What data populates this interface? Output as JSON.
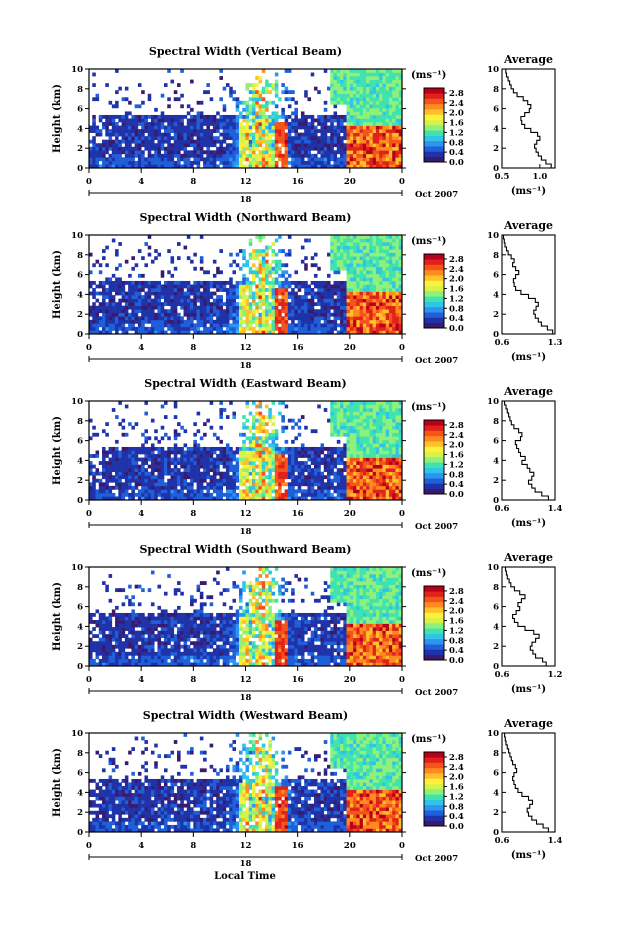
{
  "footer": {
    "xlabel": "Local Time"
  },
  "colorbar": {
    "unit_label": "(ms⁻¹)",
    "ticks": [
      "0.0",
      "0.4",
      "0.8",
      "1.2",
      "1.6",
      "2.0",
      "2.4",
      "2.8"
    ],
    "colors": [
      "#3a1a6e",
      "#2032a8",
      "#1f5fd9",
      "#2c95f0",
      "#31c4e6",
      "#3ee3b0",
      "#8ff07a",
      "#d8f24a",
      "#fff03a",
      "#ffc12a",
      "#ff8a20",
      "#f4541a",
      "#e0221a",
      "#b8001a"
    ]
  },
  "chart_data": [
    {
      "type": "heatmap",
      "title": "Spectral Width (Vertical Beam)",
      "ylabel": "Height (km)",
      "ylim": [
        0,
        10
      ],
      "yticks": [
        "0",
        "2",
        "4",
        "6",
        "8",
        "10"
      ],
      "xlim": [
        0,
        24
      ],
      "xticks": [
        "0",
        "4",
        "8",
        "12",
        "16",
        "20",
        "0"
      ],
      "date_marker": "18",
      "date_label": "Oct 2007",
      "profile": {
        "title": "Average",
        "xlabel": "(ms⁻¹)",
        "xlim": [
          0.5,
          1.2
        ],
        "xticks": [
          "0.5",
          "1.0"
        ],
        "yticks": [
          "0",
          "2",
          "4",
          "6",
          "8",
          "10"
        ],
        "heights": [
          0.2,
          0.6,
          1.0,
          1.4,
          1.8,
          2.2,
          2.6,
          3.0,
          3.4,
          3.8,
          4.2,
          4.6,
          5.0,
          5.4,
          5.8,
          6.2,
          6.6,
          7.0,
          7.4,
          7.8,
          8.2,
          8.6,
          9.0,
          9.4,
          9.8
        ],
        "values": [
          1.15,
          1.08,
          1.02,
          0.98,
          0.95,
          0.93,
          0.96,
          1.0,
          0.97,
          0.88,
          0.8,
          0.76,
          0.75,
          0.8,
          0.86,
          0.88,
          0.84,
          0.78,
          0.7,
          0.65,
          0.62,
          0.6,
          0.58,
          0.56,
          0.55
        ]
      }
    },
    {
      "type": "heatmap",
      "title": "Spectral Width (Northward Beam)",
      "ylabel": "Height (km)",
      "ylim": [
        0,
        10
      ],
      "yticks": [
        "0",
        "2",
        "4",
        "6",
        "8",
        "10"
      ],
      "xlim": [
        0,
        24
      ],
      "xticks": [
        "0",
        "4",
        "8",
        "12",
        "16",
        "20",
        "0"
      ],
      "date_marker": "18",
      "date_label": "Oct 2007",
      "profile": {
        "title": "Average",
        "xlabel": "(ms⁻¹)",
        "xlim": [
          0.6,
          1.3
        ],
        "xticks": [
          "0.6",
          "1.3"
        ],
        "yticks": [
          "0",
          "2",
          "4",
          "6",
          "8",
          "10"
        ],
        "heights": [
          0.2,
          0.6,
          1.0,
          1.4,
          1.8,
          2.2,
          2.6,
          3.0,
          3.4,
          3.8,
          4.2,
          4.6,
          5.0,
          5.4,
          5.8,
          6.2,
          6.6,
          7.0,
          7.4,
          7.8,
          8.2,
          8.6,
          9.0,
          9.4,
          9.8
        ],
        "values": [
          1.27,
          1.2,
          1.12,
          1.08,
          1.04,
          1.02,
          1.05,
          1.08,
          1.04,
          0.95,
          0.85,
          0.78,
          0.76,
          0.75,
          0.78,
          0.82,
          0.78,
          0.74,
          0.76,
          0.72,
          0.68,
          0.66,
          0.64,
          0.63,
          0.62
        ]
      }
    },
    {
      "type": "heatmap",
      "title": "Spectral Width (Eastward Beam)",
      "ylabel": "Height (km)",
      "ylim": [
        0,
        10
      ],
      "yticks": [
        "0",
        "2",
        "4",
        "6",
        "8",
        "10"
      ],
      "xlim": [
        0,
        24
      ],
      "xticks": [
        "0",
        "4",
        "8",
        "12",
        "16",
        "20",
        "0"
      ],
      "date_marker": "18",
      "date_label": "Oct 2007",
      "profile": {
        "title": "Average",
        "xlabel": "(ms⁻¹)",
        "xlim": [
          0.6,
          1.4
        ],
        "xticks": [
          "0.6",
          "1.4"
        ],
        "yticks": [
          "0",
          "2",
          "4",
          "6",
          "8",
          "10"
        ],
        "heights": [
          0.2,
          0.6,
          1.0,
          1.4,
          1.8,
          2.2,
          2.6,
          3.0,
          3.4,
          3.8,
          4.2,
          4.6,
          5.0,
          5.4,
          5.8,
          6.2,
          6.6,
          7.0,
          7.4,
          7.8,
          8.2,
          8.6,
          9.0,
          9.4,
          9.8
        ],
        "values": [
          1.3,
          1.2,
          1.1,
          1.05,
          1.0,
          1.05,
          1.08,
          1.02,
          0.98,
          0.9,
          0.95,
          0.88,
          0.85,
          0.82,
          0.8,
          0.88,
          0.9,
          0.85,
          0.78,
          0.74,
          0.72,
          0.7,
          0.68,
          0.66,
          0.64
        ]
      }
    },
    {
      "type": "heatmap",
      "title": "Spectral Width (Southward Beam)",
      "ylabel": "Height (km)",
      "ylim": [
        0,
        10
      ],
      "yticks": [
        "0",
        "2",
        "4",
        "6",
        "8",
        "10"
      ],
      "xlim": [
        0,
        24
      ],
      "xticks": [
        "0",
        "4",
        "8",
        "12",
        "16",
        "20",
        "0"
      ],
      "date_marker": "18",
      "date_label": "Oct 2007",
      "profile": {
        "title": "Average",
        "xlabel": "(ms⁻¹)",
        "xlim": [
          0.6,
          1.2
        ],
        "xticks": [
          "0.6",
          "1.2"
        ],
        "yticks": [
          "0",
          "2",
          "4",
          "6",
          "8",
          "10"
        ],
        "heights": [
          0.2,
          0.6,
          1.0,
          1.4,
          1.8,
          2.2,
          2.6,
          3.0,
          3.4,
          3.8,
          4.2,
          4.6,
          5.0,
          5.4,
          5.8,
          6.2,
          6.6,
          7.0,
          7.4,
          7.8,
          8.2,
          8.6,
          9.0,
          9.4,
          9.8
        ],
        "values": [
          1.1,
          1.06,
          0.98,
          0.95,
          0.92,
          0.94,
          0.98,
          1.02,
          0.96,
          0.86,
          0.78,
          0.74,
          0.72,
          0.76,
          0.8,
          0.78,
          0.82,
          0.86,
          0.8,
          0.74,
          0.7,
          0.68,
          0.66,
          0.65,
          0.64
        ]
      }
    },
    {
      "type": "heatmap",
      "title": "Spectral Width (Westward Beam)",
      "ylabel": "Height (km)",
      "ylim": [
        0,
        10
      ],
      "yticks": [
        "0",
        "2",
        "4",
        "6",
        "8",
        "10"
      ],
      "xlim": [
        0,
        24
      ],
      "xticks": [
        "0",
        "4",
        "8",
        "12",
        "16",
        "20",
        "0"
      ],
      "date_marker": "18",
      "date_label": "Oct 2007",
      "profile": {
        "title": "Average",
        "xlabel": "(ms⁻¹)",
        "xlim": [
          0.6,
          1.4
        ],
        "xticks": [
          "0.6",
          "1.4"
        ],
        "yticks": [
          "0",
          "2",
          "4",
          "6",
          "8",
          "10"
        ],
        "heights": [
          0.2,
          0.6,
          1.0,
          1.4,
          1.8,
          2.2,
          2.6,
          3.0,
          3.4,
          3.8,
          4.2,
          4.6,
          5.0,
          5.4,
          5.8,
          6.2,
          6.6,
          7.0,
          7.4,
          7.8,
          8.2,
          8.6,
          9.0,
          9.4,
          9.8
        ],
        "values": [
          1.3,
          1.22,
          1.12,
          1.05,
          1.0,
          0.98,
          1.02,
          1.06,
          1.0,
          0.9,
          0.84,
          0.8,
          0.78,
          0.76,
          0.78,
          0.82,
          0.8,
          0.76,
          0.74,
          0.72,
          0.7,
          0.68,
          0.66,
          0.65,
          0.64
        ]
      }
    }
  ]
}
